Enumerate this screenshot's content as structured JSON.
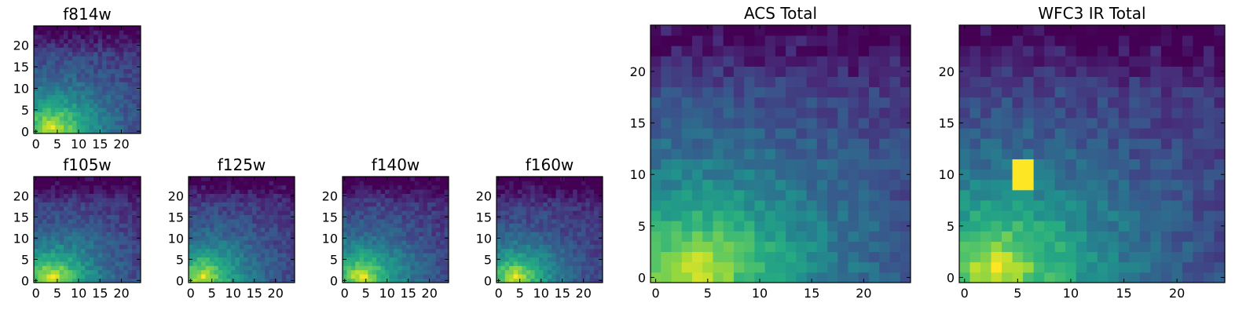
{
  "chart_data": [
    {
      "type": "heatmap",
      "title": "f814w",
      "x_ticks": [
        0,
        5,
        10,
        15,
        20
      ],
      "y_ticks": [
        0,
        5,
        10,
        15,
        20
      ],
      "xlim": [
        0,
        25
      ],
      "ylim": [
        0,
        25
      ],
      "grid_size": [
        25,
        25
      ],
      "colormap": "viridis",
      "peak": {
        "x": 4,
        "y": 1
      },
      "decay": 0.11
    },
    {
      "type": "heatmap",
      "title": "f105w",
      "x_ticks": [
        0,
        5,
        10,
        15,
        20
      ],
      "y_ticks": [
        0,
        5,
        10,
        15,
        20
      ],
      "xlim": [
        0,
        25
      ],
      "ylim": [
        0,
        25
      ],
      "grid_size": [
        25,
        25
      ],
      "colormap": "viridis",
      "peak": {
        "x": 4,
        "y": 1
      },
      "decay": 0.12
    },
    {
      "type": "heatmap",
      "title": "f125w",
      "x_ticks": [
        0,
        5,
        10,
        15,
        20
      ],
      "y_ticks": [
        0,
        5,
        10,
        15,
        20
      ],
      "xlim": [
        0,
        25
      ],
      "ylim": [
        0,
        25
      ],
      "grid_size": [
        25,
        25
      ],
      "colormap": "viridis",
      "peak": {
        "x": 3,
        "y": 1
      },
      "decay": 0.12
    },
    {
      "type": "heatmap",
      "title": "f140w",
      "x_ticks": [
        0,
        5,
        10,
        15,
        20
      ],
      "y_ticks": [
        0,
        5,
        10,
        15,
        20
      ],
      "xlim": [
        0,
        25
      ],
      "ylim": [
        0,
        25
      ],
      "grid_size": [
        25,
        25
      ],
      "colormap": "viridis",
      "peak": {
        "x": 4,
        "y": 1
      },
      "decay": 0.12
    },
    {
      "type": "heatmap",
      "title": "f160w",
      "x_ticks": [
        0,
        5,
        10,
        15,
        20
      ],
      "y_ticks": [
        0,
        5,
        10,
        15,
        20
      ],
      "xlim": [
        0,
        25
      ],
      "ylim": [
        0,
        25
      ],
      "grid_size": [
        25,
        25
      ],
      "colormap": "viridis",
      "peak": {
        "x": 4,
        "y": 1
      },
      "decay": 0.13
    },
    {
      "type": "heatmap",
      "title": "ACS Total",
      "x_ticks": [
        0,
        5,
        10,
        15,
        20
      ],
      "y_ticks": [
        0,
        5,
        10,
        15,
        20
      ],
      "xlim": [
        0,
        25
      ],
      "ylim": [
        0,
        25
      ],
      "grid_size": [
        25,
        25
      ],
      "colormap": "viridis",
      "peak": {
        "x": 4,
        "y": 1
      },
      "decay": 0.1
    },
    {
      "type": "heatmap",
      "title": "WFC3 IR Total",
      "x_ticks": [
        0,
        5,
        10,
        15,
        20
      ],
      "y_ticks": [
        0,
        5,
        10,
        15,
        20
      ],
      "xlim": [
        0,
        25
      ],
      "ylim": [
        0,
        25
      ],
      "grid_size": [
        25,
        25
      ],
      "colormap": "viridis",
      "peak": {
        "x": 3,
        "y": 1
      },
      "decay": 0.11,
      "hotspot": {
        "x": [
          5,
          6
        ],
        "y": [
          9,
          11
        ]
      }
    }
  ]
}
